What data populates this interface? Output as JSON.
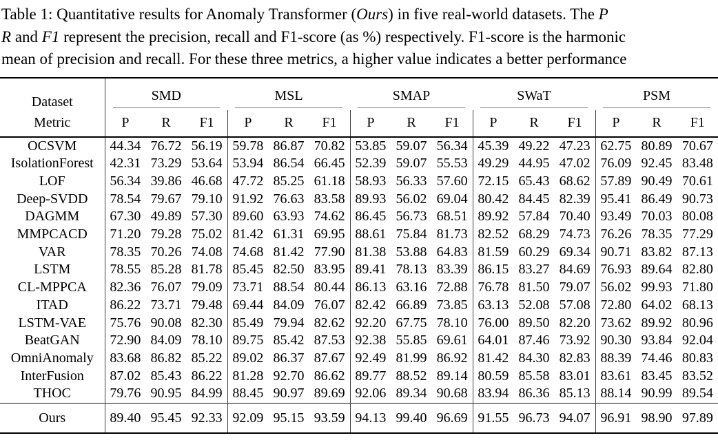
{
  "caption": {
    "line1": [
      {
        "text": "Table 1: Quantitative results for Anomaly Transformer ("
      },
      {
        "text": "Ours",
        "italic": true
      },
      {
        "text": ") in five real-world datasets.  The "
      },
      {
        "text": "P",
        "italic": true
      }
    ],
    "line2": [
      {
        "text": "R",
        "italic": true
      },
      {
        "text": " and "
      },
      {
        "text": "F1",
        "italic": true
      },
      {
        "text": " represent the precision, recall and F1-score (as %) respectively. F1-score is the harmonic"
      }
    ],
    "line3": [
      {
        "text": "mean of precision and recall. For these three metrics, a higher value indicates a better performance"
      }
    ]
  },
  "table": {
    "dataset_label": "Dataset",
    "metric_label": "Metric",
    "groups": [
      "SMD",
      "MSL",
      "SMAP",
      "SWaT",
      "PSM"
    ],
    "metrics": [
      "P",
      "R",
      "F1"
    ],
    "rows": [
      {
        "name": "OCSVM",
        "values": [
          "44.34",
          "76.72",
          "56.19",
          "59.78",
          "86.87",
          "70.82",
          "53.85",
          "59.07",
          "56.34",
          "45.39",
          "49.22",
          "47.23",
          "62.75",
          "80.89",
          "70.67"
        ]
      },
      {
        "name": "IsolationForest",
        "values": [
          "42.31",
          "73.29",
          "53.64",
          "53.94",
          "86.54",
          "66.45",
          "52.39",
          "59.07",
          "55.53",
          "49.29",
          "44.95",
          "47.02",
          "76.09",
          "92.45",
          "83.48"
        ]
      },
      {
        "name": "LOF",
        "values": [
          "56.34",
          "39.86",
          "46.68",
          "47.72",
          "85.25",
          "61.18",
          "58.93",
          "56.33",
          "57.60",
          "72.15",
          "65.43",
          "68.62",
          "57.89",
          "90.49",
          "70.61"
        ]
      },
      {
        "name": "Deep-SVDD",
        "values": [
          "78.54",
          "79.67",
          "79.10",
          "91.92",
          "76.63",
          "83.58",
          "89.93",
          "56.02",
          "69.04",
          "80.42",
          "84.45",
          "82.39",
          "95.41",
          "86.49",
          "90.73"
        ]
      },
      {
        "name": "DAGMM",
        "values": [
          "67.30",
          "49.89",
          "57.30",
          "89.60",
          "63.93",
          "74.62",
          "86.45",
          "56.73",
          "68.51",
          "89.92",
          "57.84",
          "70.40",
          "93.49",
          "70.03",
          "80.08"
        ]
      },
      {
        "name": "MMPCACD",
        "values": [
          "71.20",
          "79.28",
          "75.02",
          "81.42",
          "61.31",
          "69.95",
          "88.61",
          "75.84",
          "81.73",
          "82.52",
          "68.29",
          "74.73",
          "76.26",
          "78.35",
          "77.29"
        ]
      },
      {
        "name": "VAR",
        "values": [
          "78.35",
          "70.26",
          "74.08",
          "74.68",
          "81.42",
          "77.90",
          "81.38",
          "53.88",
          "64.83",
          "81.59",
          "60.29",
          "69.34",
          "90.71",
          "83.82",
          "87.13"
        ]
      },
      {
        "name": "LSTM",
        "values": [
          "78.55",
          "85.28",
          "81.78",
          "85.45",
          "82.50",
          "83.95",
          "89.41",
          "78.13",
          "83.39",
          "86.15",
          "83.27",
          "84.69",
          "76.93",
          "89.64",
          "82.80"
        ]
      },
      {
        "name": "CL-MPPCA",
        "values": [
          "82.36",
          "76.07",
          "79.09",
          "73.71",
          "88.54",
          "80.44",
          "86.13",
          "63.16",
          "72.88",
          "76.78",
          "81.50",
          "79.07",
          "56.02",
          "99.93",
          "71.80"
        ]
      },
      {
        "name": "ITAD",
        "values": [
          "86.22",
          "73.71",
          "79.48",
          "69.44",
          "84.09",
          "76.07",
          "82.42",
          "66.89",
          "73.85",
          "63.13",
          "52.08",
          "57.08",
          "72.80",
          "64.02",
          "68.13"
        ]
      },
      {
        "name": "LSTM-VAE",
        "values": [
          "75.76",
          "90.08",
          "82.30",
          "85.49",
          "79.94",
          "82.62",
          "92.20",
          "67.75",
          "78.10",
          "76.00",
          "89.50",
          "82.20",
          "73.62",
          "89.92",
          "80.96"
        ]
      },
      {
        "name": "BeatGAN",
        "values": [
          "72.90",
          "84.09",
          "78.10",
          "89.75",
          "85.42",
          "87.53",
          "92.38",
          "55.85",
          "69.61",
          "64.01",
          "87.46",
          "73.92",
          "90.30",
          "93.84",
          "92.04"
        ]
      },
      {
        "name": "OmniAnomaly",
        "values": [
          "83.68",
          "86.82",
          "85.22",
          "89.02",
          "86.37",
          "87.67",
          "92.49",
          "81.99",
          "86.92",
          "81.42",
          "84.30",
          "82.83",
          "88.39",
          "74.46",
          "80.83"
        ]
      },
      {
        "name": "InterFusion",
        "values": [
          "87.02",
          "85.43",
          "86.22",
          "81.28",
          "92.70",
          "86.62",
          "89.77",
          "88.52",
          "89.14",
          "80.59",
          "85.58",
          "83.01",
          "83.61",
          "83.45",
          "83.52"
        ]
      },
      {
        "name": "THOC",
        "values": [
          "79.76",
          "90.95",
          "84.99",
          "88.45",
          "90.97",
          "89.69",
          "92.06",
          "89.34",
          "90.68",
          "83.94",
          "86.36",
          "85.13",
          "88.14",
          "90.99",
          "89.54"
        ]
      }
    ],
    "ours": {
      "name": "Ours",
      "values": [
        "89.40",
        "95.45",
        "92.33",
        "92.09",
        "95.15",
        "93.59",
        "94.13",
        "99.40",
        "96.69",
        "91.55",
        "96.73",
        "94.07",
        "96.91",
        "98.90",
        "97.89"
      ],
      "bold_indices": [
        2,
        5,
        8,
        11,
        14
      ]
    }
  }
}
